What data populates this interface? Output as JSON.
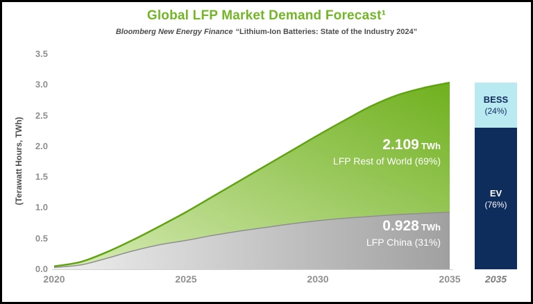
{
  "frame": {
    "border_color": "#000000",
    "background": "#ffffff"
  },
  "header": {
    "title": "Global LFP Market Demand Forecast¹",
    "source_prefix": "Bloomberg New Energy Finance",
    "source_rest": "“Lithium-Ion Batteries: State of the Industry 2024”"
  },
  "chart_data": {
    "type": "area",
    "stacked": true,
    "title": "Global LFP Market Demand Forecast",
    "ylabel": "(Terawatt Hours, TWh)",
    "ylim": [
      0,
      3.5
    ],
    "x": [
      2020,
      2021,
      2022,
      2023,
      2024,
      2025,
      2026,
      2027,
      2028,
      2029,
      2030,
      2031,
      2032,
      2033,
      2034,
      2035
    ],
    "xtick_labels": [
      "2020",
      "2025",
      "2030",
      "2035"
    ],
    "ytick_labels": [
      "3.5",
      "3.0",
      "2.5",
      "2.0",
      "1.5",
      "1.0",
      "0.5",
      "0.0"
    ],
    "series": [
      {
        "name": "LFP China",
        "values": [
          0.03,
          0.07,
          0.18,
          0.3,
          0.4,
          0.47,
          0.55,
          0.62,
          0.68,
          0.74,
          0.79,
          0.83,
          0.86,
          0.89,
          0.91,
          0.928
        ],
        "gradient_start": "#efefef",
        "gradient_end": "#a0a0a0",
        "stroke": "#8f8f8f"
      },
      {
        "name": "LFP Rest of World",
        "values": [
          0.02,
          0.05,
          0.1,
          0.18,
          0.3,
          0.46,
          0.63,
          0.81,
          1.0,
          1.19,
          1.39,
          1.59,
          1.79,
          1.94,
          2.04,
          2.109
        ],
        "gradient_start": "#d9ecb8",
        "gradient_end": "#6fb01e",
        "stroke": "#60a312"
      }
    ],
    "annotations": [
      {
        "value": "2.109",
        "unit": "TWh",
        "label": "LFP Rest of World (69%)"
      },
      {
        "value": "0.928",
        "unit": "TWh",
        "label": "LFP China (31%)"
      }
    ],
    "legend_position": "none",
    "grid": false
  },
  "side_bar": {
    "axis_label": "2035",
    "segments": [
      {
        "name": "BESS",
        "pct_label": "(24%)",
        "pct": 24,
        "color": "#b9e9f1",
        "text_color": "#0e2c5c"
      },
      {
        "name": "EV",
        "pct_label": "(76%)",
        "pct": 76,
        "color": "#0e2c5c",
        "text_color": "#ffffff"
      }
    ]
  },
  "colors": {
    "title_green": "#72b626",
    "tick_gray": "#8f8f8f",
    "navy": "#0e2c5c",
    "bess_cyan": "#b9e9f1"
  }
}
